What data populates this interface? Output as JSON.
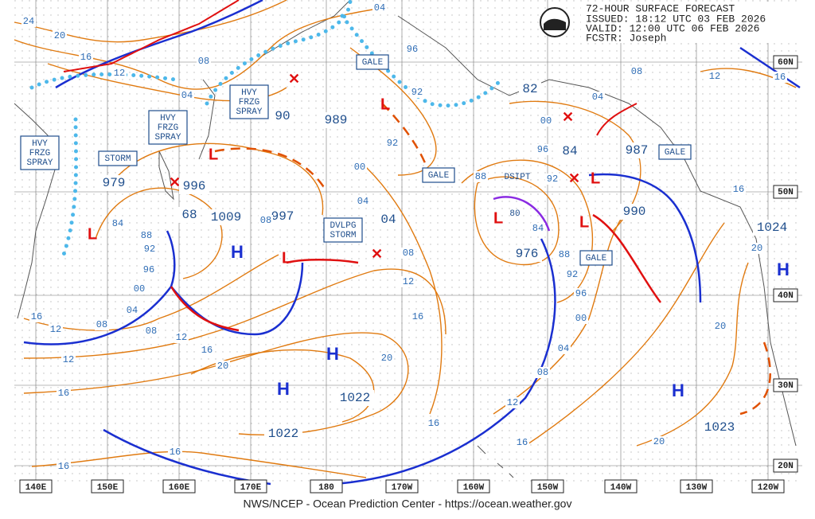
{
  "header": {
    "title": "72-HOUR SURFACE FORECAST",
    "issued": "ISSUED: 18:12 UTC 03 FEB 2026",
    "valid": "VALID:  12:00 UTC 06 FEB 2026",
    "forecaster": "FCSTR:  Joseph"
  },
  "footer": "NWS/NCEP - Ocean Prediction Center - https://ocean.weather.gov",
  "longitudes": [
    "140E",
    "150E",
    "160E",
    "170E",
    "180",
    "170W",
    "160W",
    "150W",
    "140W",
    "130W",
    "120W"
  ],
  "latitudes": [
    "60N",
    "50N",
    "40N",
    "30N",
    "20N"
  ],
  "warnings": [
    {
      "lines": [
        "GALE"
      ]
    },
    {
      "lines": [
        "HVY",
        "FRZG",
        "SPRAY"
      ]
    },
    {
      "lines": [
        "HVY",
        "FRZG",
        "SPRAY"
      ]
    },
    {
      "lines": [
        "HVY",
        "FRZG",
        "SPRAY"
      ]
    },
    {
      "lines": [
        "STORM"
      ]
    },
    {
      "lines": [
        "GALE"
      ]
    },
    {
      "lines": [
        "DVLPG",
        "STORM"
      ]
    },
    {
      "lines": [
        "DSIPT"
      ]
    },
    {
      "lines": [
        "GALE"
      ]
    },
    {
      "lines": [
        "GALE"
      ]
    }
  ],
  "centers": [
    "979",
    "996",
    "1009",
    "68",
    "997",
    "04",
    "90",
    "989",
    "82",
    "84",
    "987",
    "990",
    "976",
    "1024",
    "1022",
    "1022",
    "1023",
    "80"
  ],
  "highs": [
    "H",
    "H",
    "H",
    "H",
    "H"
  ],
  "isobar_labels": [
    "24",
    "20",
    "16",
    "12",
    "08",
    "04",
    "04",
    "96",
    "92",
    "92",
    "00",
    "04",
    "08",
    "84",
    "88",
    "92",
    "96",
    "00",
    "04",
    "08",
    "12",
    "16",
    "12",
    "16",
    "12",
    "16",
    "20",
    "08",
    "08",
    "12",
    "16",
    "20",
    "16",
    "16",
    "16",
    "16",
    "12",
    "08",
    "04",
    "00",
    "96",
    "92",
    "88",
    "84",
    "88",
    "92",
    "96",
    "00",
    "04",
    "08",
    "12",
    "16",
    "16",
    "20",
    "20",
    "20"
  ]
}
